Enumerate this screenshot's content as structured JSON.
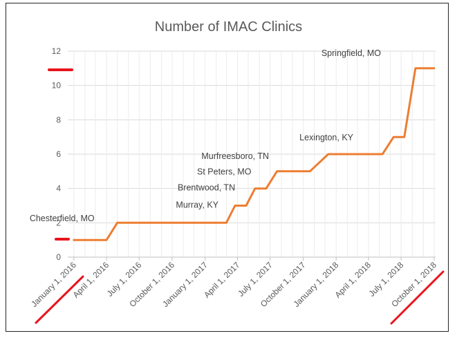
{
  "chart_data": {
    "type": "line",
    "title": "Number of IMAC Clinics",
    "xlabel": "",
    "ylabel": "",
    "ylim": [
      0,
      12
    ],
    "yticks": [
      0,
      2,
      4,
      6,
      8,
      10,
      12
    ],
    "xlim": [
      "2015-12-15",
      "2018-10-05"
    ],
    "xticks": [
      {
        "date": "2016-01-01",
        "label": "January 1, 2016"
      },
      {
        "date": "2016-04-01",
        "label": "April 1, 2016"
      },
      {
        "date": "2016-07-01",
        "label": "July 1, 2016"
      },
      {
        "date": "2016-10-01",
        "label": "October 1, 2016"
      },
      {
        "date": "2017-01-01",
        "label": "January 1, 2017"
      },
      {
        "date": "2017-04-01",
        "label": "April 1, 2017"
      },
      {
        "date": "2017-07-01",
        "label": "July 1, 2017"
      },
      {
        "date": "2017-10-01",
        "label": "October 1, 2017"
      },
      {
        "date": "2018-01-01",
        "label": "January 1, 2018"
      },
      {
        "date": "2018-04-01",
        "label": "April 1, 2018"
      },
      {
        "date": "2018-07-01",
        "label": "July 1, 2018"
      },
      {
        "date": "2018-10-01",
        "label": "October 1, 2018"
      }
    ],
    "grid": true,
    "series": [
      {
        "name": "IMAC Clinics",
        "color": "#ED7D31",
        "points": [
          {
            "date": "2016-01-01",
            "value": 1
          },
          {
            "date": "2016-04-01",
            "value": 1
          },
          {
            "date": "2016-05-01",
            "value": 2
          },
          {
            "date": "2017-03-01",
            "value": 2
          },
          {
            "date": "2017-03-25",
            "value": 3
          },
          {
            "date": "2017-04-25",
            "value": 3
          },
          {
            "date": "2017-05-20",
            "value": 4
          },
          {
            "date": "2017-06-20",
            "value": 4
          },
          {
            "date": "2017-07-20",
            "value": 5
          },
          {
            "date": "2017-10-20",
            "value": 5
          },
          {
            "date": "2017-12-10",
            "value": 6
          },
          {
            "date": "2018-05-10",
            "value": 6
          },
          {
            "date": "2018-06-10",
            "value": 7
          },
          {
            "date": "2018-07-10",
            "value": 7
          },
          {
            "date": "2018-08-10",
            "value": 11
          },
          {
            "date": "2018-10-01",
            "value": 11
          }
        ]
      }
    ],
    "annotations": [
      {
        "text": "Chesterfield, MO",
        "date": "2016-01-01",
        "value": 1
      },
      {
        "text": "Murray, KY",
        "date": "2017-03-01",
        "value": 2
      },
      {
        "text": "Brentwood, TN",
        "date": "2017-04-25",
        "value": 3
      },
      {
        "text": "St Peters, MO",
        "date": "2017-06-20",
        "value": 4
      },
      {
        "text": "Murfreesboro, TN",
        "date": "2017-10-20",
        "value": 5
      },
      {
        "text": "Lexington, KY",
        "date": "2018-05-10",
        "value": 6
      },
      {
        "text": "Springfield, MO",
        "date": "2018-07-10",
        "value": 11
      }
    ],
    "markup_color": "#E8141C",
    "markup": [
      {
        "type": "dash",
        "near_value": 11
      },
      {
        "type": "dash",
        "near_value": 1
      },
      {
        "type": "slash",
        "near_date": "2016-01-01"
      },
      {
        "type": "slash",
        "near_date": "2018-10-01"
      }
    ]
  }
}
